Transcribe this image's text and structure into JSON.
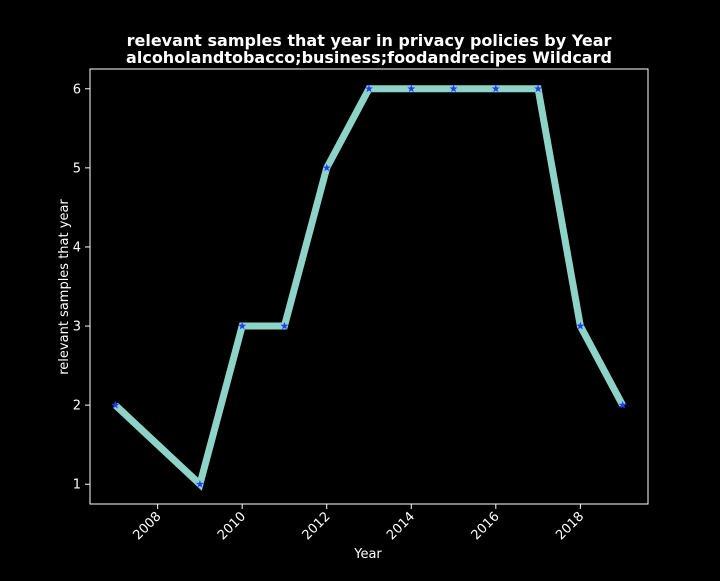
{
  "chart_data": {
    "type": "line",
    "title_lines": [
      "relevant samples that year in privacy policies by Year",
      "alcoholandtobacco;business;foodandrecipes Wildcard"
    ],
    "xlabel": "Year",
    "ylabel": "relevant samples that year",
    "x": [
      2007,
      2009,
      2010,
      2011,
      2012,
      2013,
      2014,
      2015,
      2016,
      2017,
      2018,
      2019
    ],
    "series": [
      {
        "values": [
          2,
          1,
          3,
          3,
          5,
          6,
          6,
          6,
          6,
          6,
          3,
          2
        ]
      }
    ],
    "xticks": [
      2008,
      2010,
      2012,
      2014,
      2016,
      2018
    ],
    "yticks": [
      1,
      2,
      3,
      4,
      5,
      6
    ],
    "xlim": [
      2006.4,
      2019.6
    ],
    "ylim": [
      0.75,
      6.25
    ],
    "grid": false,
    "legend": "none",
    "colors": {
      "background": "#000000",
      "axes": "#ffffff",
      "line": "#8dd3c7",
      "marker": "#1f3cff",
      "text": "#ffffff"
    }
  }
}
